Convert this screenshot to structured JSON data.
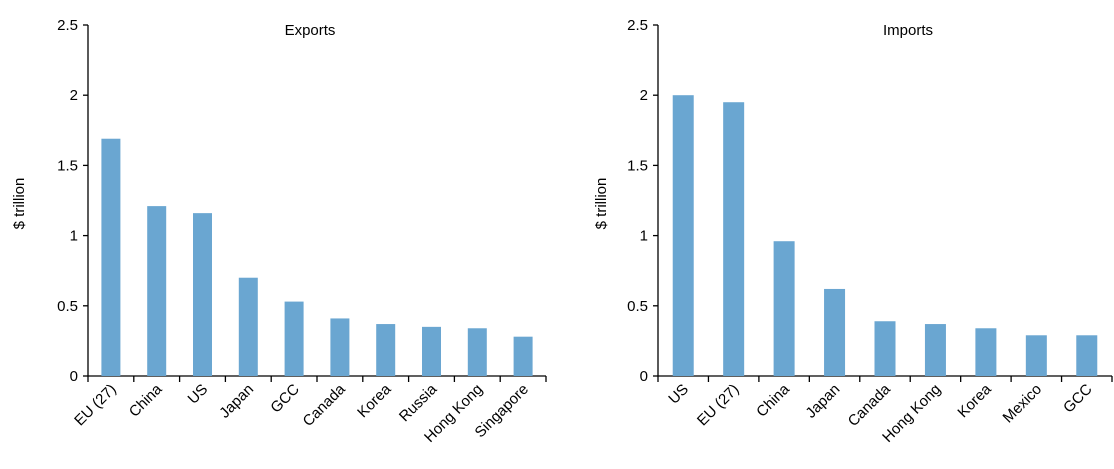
{
  "chart_data": [
    {
      "type": "bar",
      "title": "Exports",
      "xlabel": "",
      "ylabel": "$ trillion",
      "ylim": [
        0,
        2.5
      ],
      "yticks": [
        "0",
        "0.5",
        "1",
        "1.5",
        "2",
        "2.5"
      ],
      "categories": [
        "EU (27)",
        "China",
        "US",
        "Japan",
        "GCC",
        "Canada",
        "Korea",
        "Russia",
        "Hong Kong",
        "Singapore"
      ],
      "values": [
        1.69,
        1.21,
        1.16,
        0.7,
        0.53,
        0.41,
        0.37,
        0.35,
        0.34,
        0.28
      ],
      "bar_color": "#6aa6d1",
      "grid": false,
      "legend": "none"
    },
    {
      "type": "bar",
      "title": "Imports",
      "xlabel": "",
      "ylabel": "$ trillion",
      "ylim": [
        0,
        2.5
      ],
      "yticks": [
        "0",
        "0.5",
        "1",
        "1.5",
        "2",
        "2.5"
      ],
      "categories": [
        "US",
        "EU (27)",
        "China",
        "Japan",
        "Canada",
        "Hong Kong",
        "Korea",
        "Mexico",
        "GCC"
      ],
      "values": [
        2.0,
        1.95,
        0.96,
        0.62,
        0.39,
        0.37,
        0.34,
        0.29,
        0.29
      ],
      "bar_color": "#6aa6d1",
      "grid": false,
      "legend": "none"
    }
  ]
}
